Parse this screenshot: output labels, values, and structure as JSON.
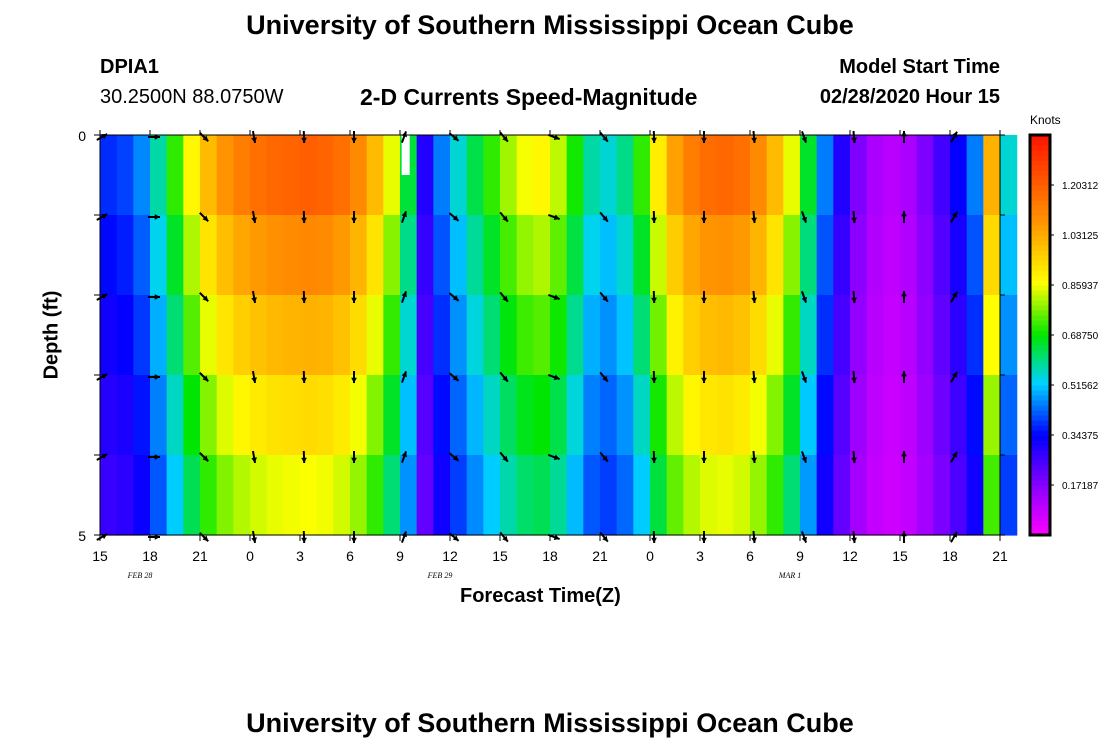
{
  "header": {
    "title": "University of Southern Mississippi Ocean Cube",
    "station_id": "DPIA1",
    "coordinates": "30.2500N 88.0750W",
    "plot_title": "2-D Currents Speed-Magnitude",
    "model_start_label": "Model Start Time",
    "model_start_value": "02/28/2020 Hour 15"
  },
  "footer": {
    "title": "University of Southern Mississippi Ocean Cube"
  },
  "chart_data": {
    "type": "heatmap",
    "title": "2-D Currents Speed-Magnitude",
    "xlabel": "Forecast Time(Z)",
    "ylabel": "Depth (ft)",
    "y_ticks": [
      "0",
      "5"
    ],
    "ylim": [
      0,
      5
    ],
    "x_tick_labels": [
      "15",
      "18",
      "21",
      "0",
      "3",
      "6",
      "9",
      "12",
      "15",
      "18",
      "21",
      "0",
      "3",
      "6",
      "9",
      "12",
      "15",
      "18",
      "21"
    ],
    "date_labels": [
      {
        "text": "FEB 28",
        "at_tick": 1
      },
      {
        "text": "FEB 29",
        "at_tick": 7
      },
      {
        "text": "MAR 1",
        "at_tick": 14
      }
    ],
    "hours": 55,
    "speed_profile_knots": [
      0.38,
      0.4,
      0.46,
      0.58,
      0.72,
      0.88,
      1.0,
      1.08,
      1.13,
      1.16,
      1.18,
      1.19,
      1.2,
      1.19,
      1.16,
      1.1,
      1.0,
      0.85,
      0.65,
      0.3,
      0.45,
      0.55,
      0.64,
      0.72,
      0.8,
      0.86,
      0.88,
      0.82,
      0.7,
      0.58,
      0.55,
      0.6,
      0.72,
      0.9,
      1.05,
      1.13,
      1.17,
      1.18,
      1.16,
      1.1,
      1.0,
      0.85,
      0.66,
      0.45,
      0.3,
      0.18,
      0.12,
      0.1,
      0.12,
      0.18,
      0.26,
      0.34,
      0.45,
      1.02,
      0.55
    ],
    "depth_factors": [
      1.0,
      0.92,
      0.85,
      0.78,
      0.72
    ],
    "colorbar": {
      "unit": "Knots",
      "min": 0.0,
      "max": 1.375,
      "tick_labels": [
        "0.17187",
        "0.34375",
        "0.51562",
        "0.68750",
        "0.85937",
        "1.03125",
        "1.20312"
      ],
      "tick_values": [
        0.17187,
        0.34375,
        0.51562,
        0.6875,
        0.85937,
        1.03125,
        1.20312
      ]
    },
    "vectors": {
      "columns_at_tick": [
        0,
        1,
        2,
        3,
        4,
        5,
        6,
        7,
        8,
        9,
        10,
        11,
        12,
        13,
        14,
        15,
        16,
        17
      ],
      "depth_rows": [
        0,
        1,
        2,
        3,
        4,
        5
      ],
      "direction_deg_by_column": [
        60,
        90,
        135,
        170,
        178,
        180,
        20,
        130,
        140,
        110,
        140,
        178,
        180,
        175,
        160,
        175,
        0,
        30
      ],
      "colors": {
        "arrow": "#000000"
      }
    }
  }
}
